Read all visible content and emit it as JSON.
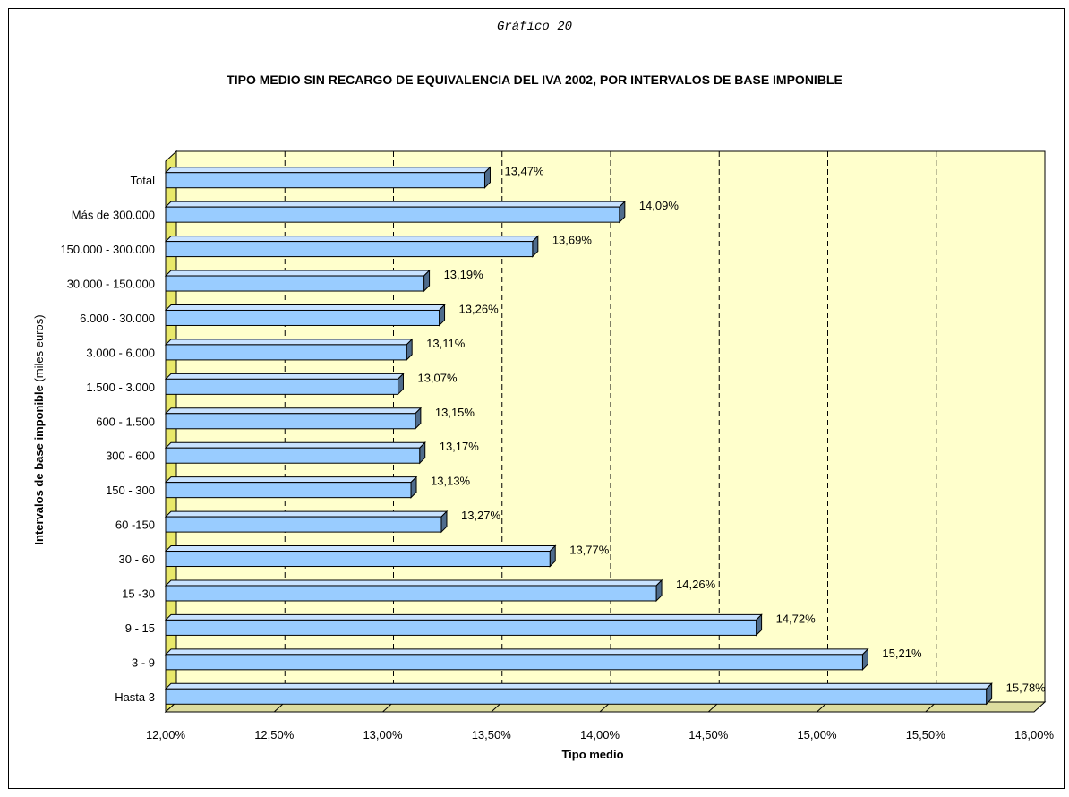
{
  "figure_label": "Gráfico  20",
  "chart_data": {
    "type": "bar",
    "orientation": "horizontal",
    "title": "TIPO MEDIO SIN RECARGO DE EQUIVALENCIA DEL IVA 2002, POR INTERVALOS DE BASE IMPONIBLE",
    "xlabel": "Tipo medio",
    "ylabel_bold": "Intervalos de base imponible",
    "ylabel_rest": " (miles euros)",
    "xlim": [
      12.0,
      16.0
    ],
    "xticks": [
      12.0,
      12.5,
      13.0,
      13.5,
      14.0,
      14.5,
      15.0,
      15.5,
      16.0
    ],
    "xtick_labels": [
      "12,00%",
      "12,50%",
      "13,00%",
      "13,50%",
      "14,00%",
      "14,50%",
      "15,00%",
      "15,50%",
      "16,00%"
    ],
    "categories": [
      "Total",
      "Más de 300.000",
      "150.000 - 300.000",
      "30.000 - 150.000",
      "6.000 - 30.000",
      "3.000 - 6.000",
      "1.500 - 3.000",
      "600 - 1.500",
      "300 - 600",
      "150 - 300",
      "60 -150",
      "30 - 60",
      "15 -30",
      "9 - 15",
      "3 - 9",
      "Hasta 3"
    ],
    "values": [
      13.47,
      14.09,
      13.69,
      13.19,
      13.26,
      13.11,
      13.07,
      13.15,
      13.17,
      13.13,
      13.27,
      13.77,
      14.26,
      14.72,
      15.21,
      15.78
    ],
    "data_labels": [
      "13,47%",
      "14,09%",
      "13,69%",
      "13,19%",
      "13,26%",
      "13,11%",
      "13,07%",
      "13,15%",
      "13,17%",
      "13,13%",
      "13,27%",
      "13,77%",
      "14,26%",
      "14,72%",
      "15,21%",
      "15,78%"
    ],
    "grid": "vertical dashed",
    "colors": {
      "bar_front": "#99ccff",
      "bar_top": "#c8e2ff",
      "bar_side": "#4f6c8c",
      "plot_wall": "#ffffcc",
      "left_wall": "#e9e96a",
      "floor": "#dcdc9f"
    }
  }
}
